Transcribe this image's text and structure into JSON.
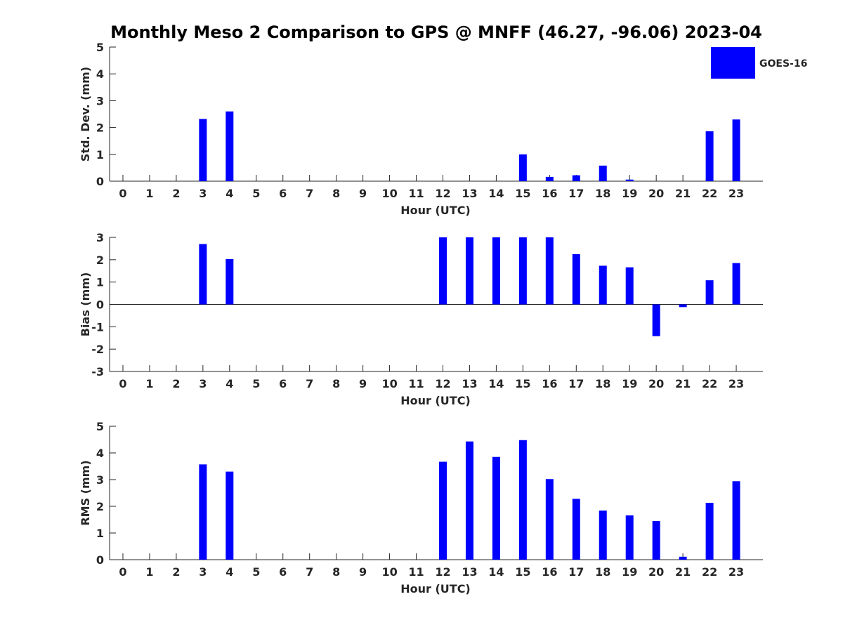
{
  "chart_data": {
    "type": "bar",
    "title": "Monthly Meso 2 Comparison to GPS @ MNFF (46.27, -96.06) 2023-04",
    "legend": {
      "label": "GOES-16",
      "color": "#0000ff",
      "position": "top-right"
    },
    "bar_color": "#0000ff",
    "categories": [
      "0",
      "1",
      "2",
      "3",
      "4",
      "5",
      "6",
      "7",
      "8",
      "9",
      "10",
      "11",
      "12",
      "13",
      "14",
      "15",
      "16",
      "17",
      "18",
      "19",
      "20",
      "21",
      "22",
      "23"
    ],
    "panels": [
      {
        "id": "std",
        "ylabel": "Std. Dev. (mm)",
        "xlabel": "Hour (UTC)",
        "ylim": [
          0,
          5
        ],
        "yticks": [
          0,
          1,
          2,
          3,
          4,
          5
        ],
        "values": [
          null,
          null,
          null,
          2.32,
          2.6,
          null,
          null,
          null,
          null,
          null,
          null,
          null,
          null,
          null,
          null,
          1.0,
          0.16,
          0.22,
          0.58,
          0.06,
          null,
          null,
          1.86,
          2.3
        ]
      },
      {
        "id": "bias",
        "ylabel": "Bias (mm)",
        "xlabel": "Hour (UTC)",
        "ylim": [
          -3,
          3
        ],
        "yticks": [
          -3,
          -2,
          -1,
          0,
          1,
          2,
          3
        ],
        "values": [
          null,
          null,
          null,
          2.7,
          2.03,
          null,
          null,
          null,
          null,
          null,
          null,
          null,
          3.0,
          3.0,
          3.0,
          3.0,
          3.0,
          2.25,
          1.73,
          1.66,
          -1.42,
          -0.12,
          1.08,
          1.85
        ]
      },
      {
        "id": "rms",
        "ylabel": "RMS (mm)",
        "xlabel": "Hour (UTC)",
        "ylim": [
          0,
          5
        ],
        "yticks": [
          0,
          1,
          2,
          3,
          4,
          5
        ],
        "values": [
          null,
          null,
          null,
          3.57,
          3.3,
          null,
          null,
          null,
          null,
          null,
          null,
          null,
          3.67,
          4.43,
          3.85,
          4.48,
          3.02,
          2.28,
          1.84,
          1.66,
          1.45,
          0.11,
          2.13,
          2.94
        ]
      }
    ]
  }
}
